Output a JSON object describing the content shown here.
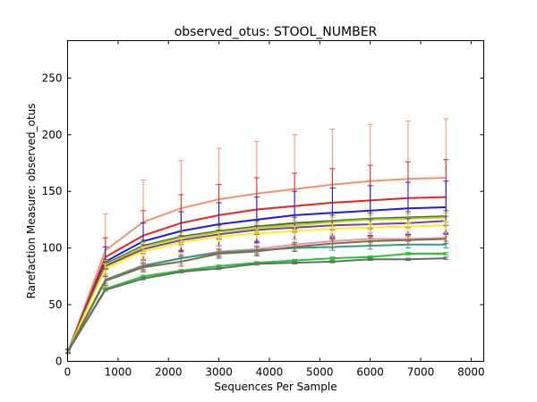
{
  "chart_data": {
    "type": "line",
    "title": "observed_otus: STOOL_NUMBER",
    "xlabel": "Sequences Per Sample",
    "ylabel": "Rarefaction Measure: observed_otus",
    "xlim": [
      0,
      8250
    ],
    "ylim": [
      0,
      283
    ],
    "xticks": [
      0,
      1000,
      2000,
      3000,
      4000,
      5000,
      6000,
      7000,
      8000
    ],
    "yticks": [
      0,
      50,
      100,
      150,
      200,
      250
    ],
    "grid": false,
    "x": [
      10,
      750,
      1500,
      2250,
      3000,
      3750,
      4500,
      5250,
      6000,
      6750,
      7500
    ],
    "series": [
      {
        "color": "#f4916c",
        "values": [
          9,
          98,
          123,
          135,
          143,
          148,
          152,
          156,
          159,
          161,
          162
        ],
        "errors": [
          2,
          32,
          37,
          42,
          45,
          46,
          48,
          49,
          50,
          51,
          52
        ]
      },
      {
        "color": "#e8231d",
        "values": [
          9,
          92,
          111,
          122,
          129,
          134,
          137,
          140,
          142,
          144,
          145
        ],
        "errors": [
          2,
          17,
          22,
          25,
          27,
          28,
          29,
          30,
          31,
          32,
          33
        ]
      },
      {
        "color": "#1a1ae6",
        "values": [
          9,
          88,
          106,
          115,
          121,
          125,
          129,
          131,
          133,
          135,
          136
        ],
        "errors": [
          2,
          13,
          16,
          17,
          19,
          20,
          21,
          22,
          22,
          23,
          23
        ]
      },
      {
        "color": "#4a6e12",
        "values": [
          9,
          86,
          102,
          110,
          115,
          119,
          122,
          124,
          126,
          127,
          128
        ],
        "errors": [
          2,
          4,
          5,
          5,
          5,
          5,
          5,
          5,
          5,
          5,
          5
        ]
      },
      {
        "color": "#a7d42a",
        "values": [
          9,
          85,
          101,
          109,
          114,
          118,
          120,
          123,
          125,
          126,
          127
        ],
        "errors": [
          2,
          4,
          4,
          4,
          4,
          4,
          4,
          4,
          4,
          4,
          4
        ]
      },
      {
        "color": "#8a3a9a",
        "values": [
          9,
          84,
          99,
          107,
          112,
          116,
          118,
          120,
          121,
          122,
          124
        ],
        "errors": [
          2,
          3,
          4,
          4,
          4,
          4,
          4,
          4,
          4,
          4,
          4
        ]
      },
      {
        "color": "#f7f21a",
        "values": [
          9,
          82,
          97,
          105,
          110,
          113,
          115,
          117,
          118,
          119,
          120
        ],
        "errors": [
          2,
          4,
          4,
          4,
          4,
          4,
          4,
          4,
          4,
          4,
          4
        ]
      },
      {
        "color": "#e890b0",
        "values": [
          9,
          72,
          85,
          91,
          97,
          99,
          103,
          106,
          108,
          108,
          109
        ],
        "errors": [
          2,
          5,
          5,
          5,
          5,
          5,
          5,
          5,
          5,
          5,
          5
        ]
      },
      {
        "color": "#2a9a9a",
        "values": [
          9,
          72,
          84,
          91,
          96,
          98,
          100,
          101,
          102,
          103,
          103
        ],
        "errors": [
          2,
          3,
          3,
          3,
          3,
          3,
          3,
          3,
          3,
          3,
          3
        ]
      },
      {
        "color": "#8a6a3a",
        "values": [
          9,
          71,
          83,
          88,
          95,
          97,
          101,
          104,
          106,
          107,
          108
        ],
        "errors": [
          2,
          4,
          4,
          4,
          4,
          4,
          4,
          4,
          4,
          4,
          4
        ]
      },
      {
        "color": "#21c72a",
        "values": [
          9,
          64,
          75,
          80,
          84,
          87,
          89,
          91,
          92,
          95,
          95
        ],
        "errors": [
          1,
          1,
          1,
          1,
          1,
          1,
          1,
          1,
          1,
          1,
          1
        ]
      },
      {
        "color": "#6a6a6a",
        "values": [
          9,
          63,
          73,
          79,
          82,
          86,
          87,
          88,
          90,
          90,
          91
        ],
        "errors": [
          1,
          1,
          1,
          1,
          1,
          1,
          1,
          1,
          1,
          1,
          1
        ]
      }
    ]
  }
}
